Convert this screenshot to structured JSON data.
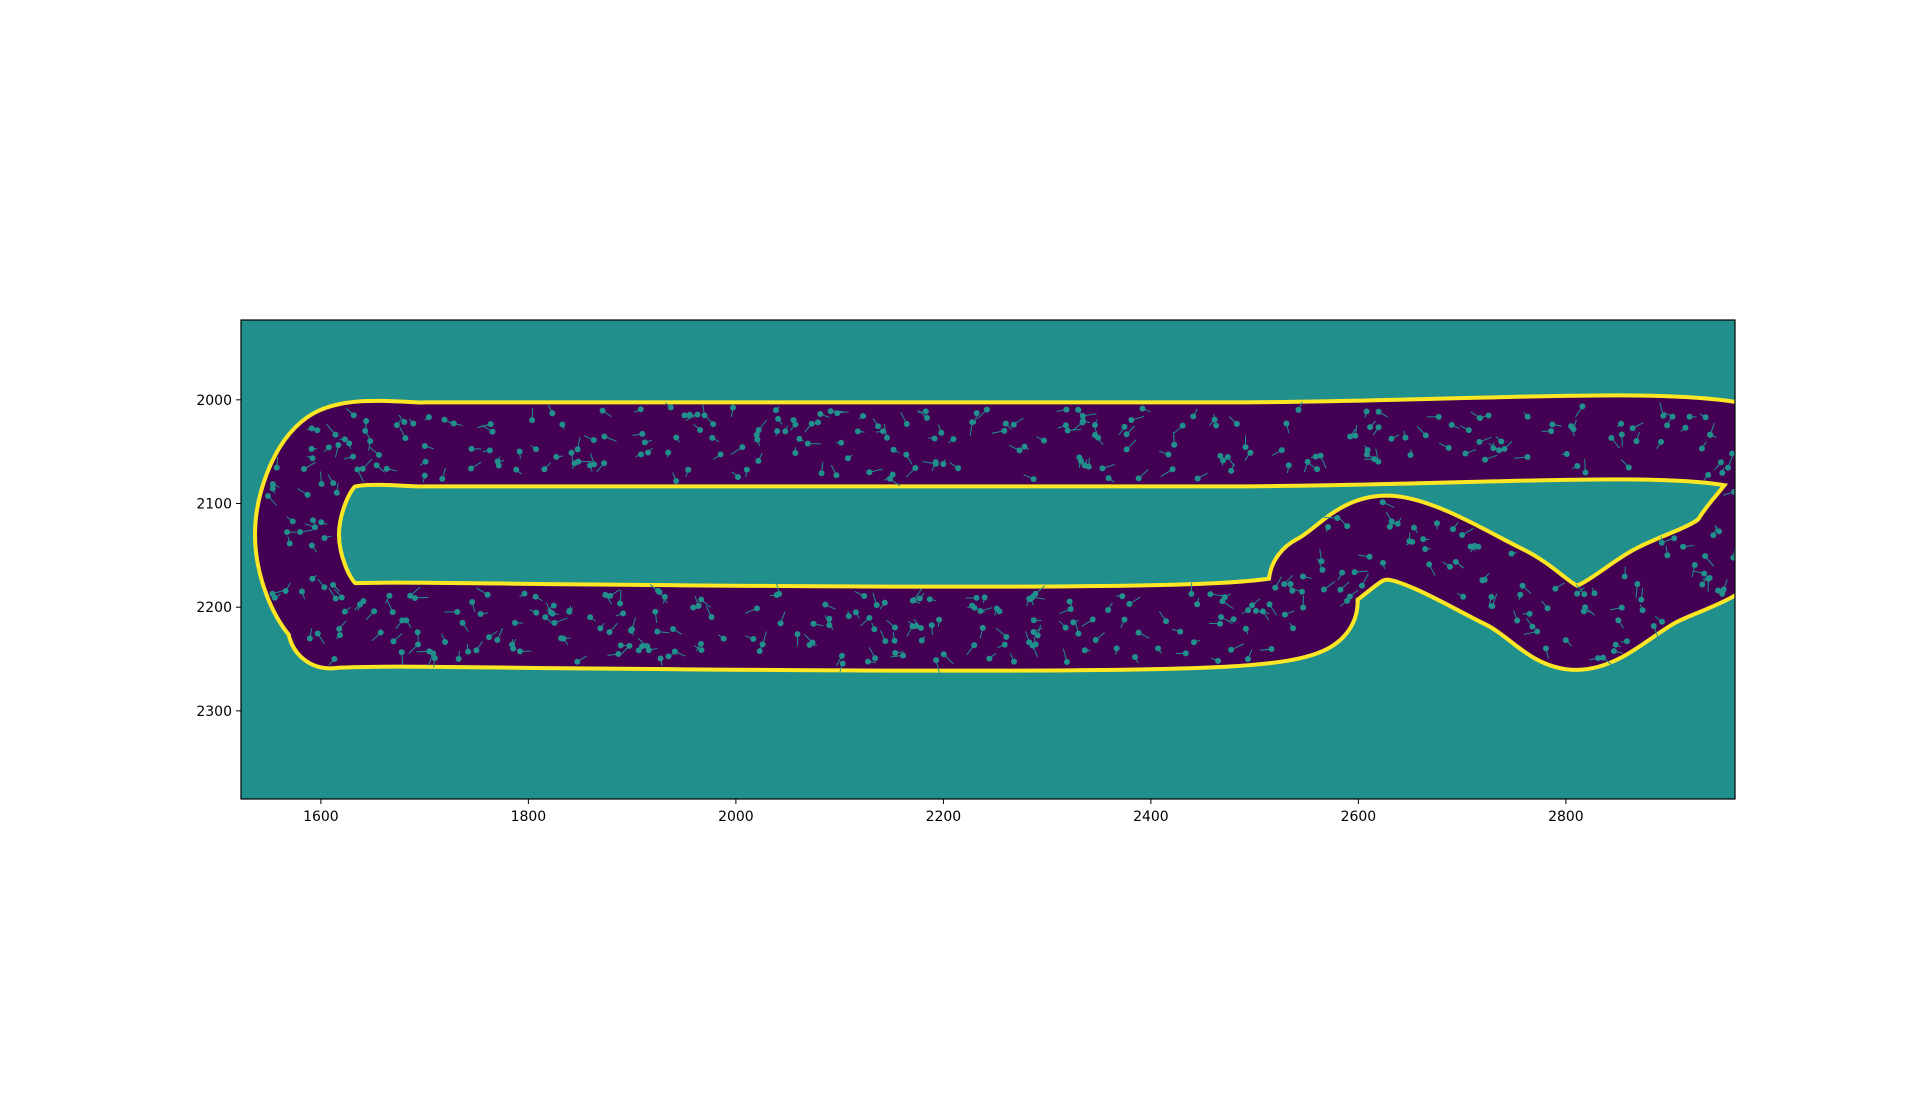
{
  "chart_data": {
    "type": "heatmap",
    "title": "",
    "xlabel": "",
    "ylabel": "",
    "xlim": [
      1523,
      2963
    ],
    "ylim": [
      2385,
      1923
    ],
    "y_inverted": true,
    "x_ticks": [
      1600,
      1800,
      2000,
      2200,
      2400,
      2600,
      2800
    ],
    "y_ticks": [
      2000,
      2100,
      2200,
      2300
    ],
    "x_tick_labels": [
      "1600",
      "1800",
      "2000",
      "2200",
      "2400",
      "2600",
      "2800"
    ],
    "y_tick_labels": [
      "2000",
      "2100",
      "2200",
      "2300"
    ],
    "colormap": "viridis",
    "colors": {
      "background": "#21908d",
      "track": "#440154",
      "boundary": "#fde725",
      "particles": "#21908d",
      "frame": "#000000"
    },
    "particle_count": 560,
    "centerline": [
      [
        1700,
        2043
      ],
      [
        2470,
        2043
      ],
      [
        2963,
        2043
      ],
      [
        2963,
        2135
      ],
      [
        2885,
        2180
      ],
      [
        2810,
        2220
      ],
      [
        2740,
        2180
      ],
      [
        2630,
        2133
      ],
      [
        2560,
        2170
      ],
      [
        2470,
        2217
      ],
      [
        1700,
        2217
      ],
      [
        1610,
        2210
      ],
      [
        1577,
        2130
      ],
      [
        1610,
        2050
      ],
      [
        1700,
        2043
      ]
    ]
  }
}
